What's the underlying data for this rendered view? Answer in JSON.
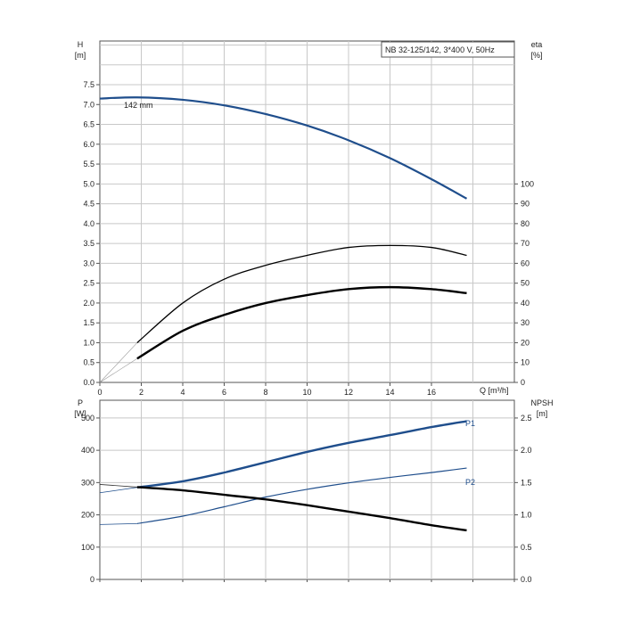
{
  "chart_data": [
    {
      "type": "line",
      "title": "NB 32-125/142, 3*400 V, 50Hz",
      "left_axis": {
        "label": "H",
        "unit": "[m]",
        "ticks": [
          "0.0",
          "0.5",
          "1.0",
          "1.5",
          "2.0",
          "2.5",
          "3.0",
          "3.5",
          "4.0",
          "4.5",
          "5.0",
          "5.5",
          "6.0",
          "6.5",
          "7.0",
          "7.5"
        ],
        "ylim": [
          0,
          8.6
        ]
      },
      "right_axis": {
        "label": "eta",
        "unit": "[%]",
        "ticks": [
          "0",
          "10",
          "20",
          "30",
          "40",
          "50",
          "60",
          "70",
          "80",
          "90",
          "100"
        ],
        "ylim": [
          0,
          172
        ]
      },
      "x_axis": {
        "label": "Q [m³/h]",
        "ticks": [
          "0",
          "2",
          "4",
          "6",
          "8",
          "10",
          "12",
          "14",
          "16"
        ],
        "xlim": [
          0,
          20
        ]
      },
      "grid": true,
      "series": [
        {
          "name": "142 mm",
          "axis": "left",
          "color": "#1f4e8c",
          "x": [
            0,
            1.8,
            4,
            6,
            8,
            10,
            12,
            14,
            16,
            17.7
          ],
          "y": [
            7.15,
            7.18,
            7.12,
            6.98,
            6.76,
            6.47,
            6.1,
            5.65,
            5.12,
            4.63
          ]
        },
        {
          "axis": "right",
          "color": "#000000",
          "x": [
            1.8,
            4,
            6,
            8,
            10,
            12,
            14,
            16,
            17.7
          ],
          "y": [
            20,
            40,
            52,
            59,
            64,
            68,
            69,
            68,
            64
          ]
        },
        {
          "axis": "right",
          "color": "#000000",
          "x": [
            1.8,
            4,
            6,
            8,
            10,
            12,
            14,
            16,
            17.7
          ],
          "y": [
            12,
            26,
            34,
            40,
            44,
            47,
            48,
            47,
            45
          ]
        }
      ]
    },
    {
      "type": "line",
      "left_axis": {
        "label": "P",
        "unit": "[W]",
        "ticks": [
          "0",
          "100",
          "200",
          "300",
          "400",
          "500"
        ],
        "ylim": [
          0,
          555
        ]
      },
      "right_axis": {
        "label": "NPSH",
        "unit": "[m]",
        "ticks": [
          "0.0",
          "0.5",
          "1.0",
          "1.5",
          "2.0",
          "2.5"
        ],
        "ylim": [
          0,
          2.775
        ]
      },
      "x_axis": {
        "xlim": [
          0,
          20
        ]
      },
      "grid": true,
      "series": [
        {
          "name": "P1",
          "axis": "left",
          "color": "#1f4e8c",
          "x": [
            1.8,
            4,
            6,
            8,
            10,
            12,
            14,
            16,
            17.7
          ],
          "y": [
            285,
            304,
            331,
            363,
            395,
            423,
            447,
            472,
            490
          ]
        },
        {
          "name": "P2",
          "axis": "left",
          "color": "#1f4e8c",
          "x": [
            1.8,
            4,
            6,
            8,
            10,
            12,
            14,
            16,
            17.7
          ],
          "y": [
            173,
            196,
            225,
            255,
            279,
            299,
            316,
            331,
            345
          ]
        },
        {
          "axis": "right",
          "color": "#000000",
          "x": [
            1.8,
            4,
            6,
            8,
            10,
            12,
            14,
            16,
            17.7
          ],
          "y": [
            1.43,
            1.38,
            1.31,
            1.24,
            1.15,
            1.05,
            0.95,
            0.84,
            0.76
          ]
        }
      ]
    }
  ]
}
